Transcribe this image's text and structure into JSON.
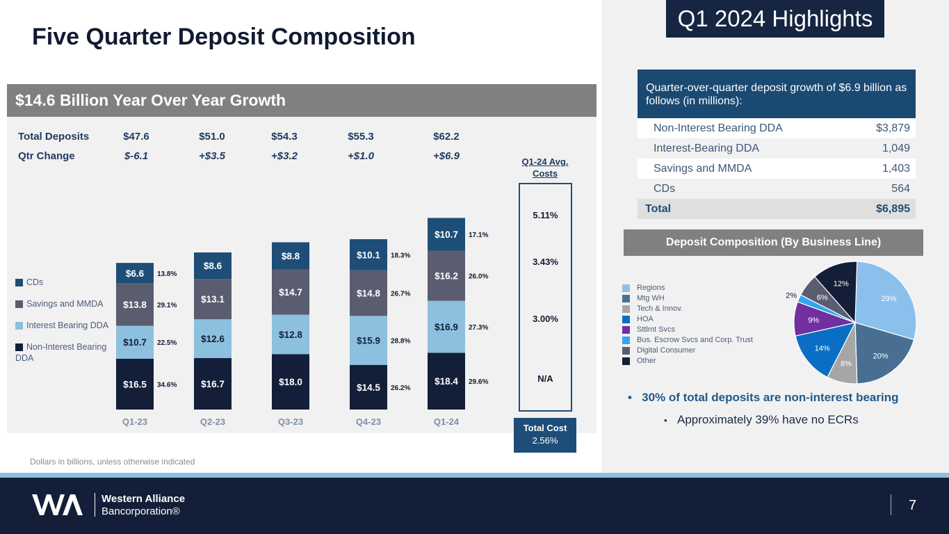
{
  "title": "Five Quarter Deposit Composition",
  "highlights_label": "Q1 2024 Highlights",
  "banner": "$14.6 Billion Year Over Year Growth",
  "header_rows": {
    "total_label": "Total Deposits",
    "change_label": "Qtr Change",
    "totals": [
      "$47.6",
      "$51.0",
      "$54.3",
      "$55.3",
      "$62.2"
    ],
    "changes": [
      "$-6.1",
      "+$3.5",
      "+$3.2",
      "+$1.0",
      "+$6.9"
    ]
  },
  "chart_data": [
    {
      "type": "bar",
      "stacked": true,
      "categories": [
        "Q1-23",
        "Q2-23",
        "Q3-23",
        "Q4-23",
        "Q1-24"
      ],
      "series": [
        {
          "name": "Non-Interest Bearing DDA",
          "color": "#131f38",
          "values": [
            16.5,
            16.7,
            18.0,
            14.5,
            18.4
          ],
          "labels": [
            "$16.5",
            "$16.7",
            "$18.0",
            "$14.5",
            "$18.4"
          ],
          "pcts": [
            "34.6%",
            "",
            "",
            "26.2%",
            "29.6%"
          ]
        },
        {
          "name": "Interest Bearing DDA",
          "color": "#8cc0de",
          "values": [
            10.7,
            12.6,
            12.8,
            15.9,
            16.9
          ],
          "labels": [
            "$10.7",
            "$12.6",
            "$12.8",
            "$15.9",
            "$16.9"
          ],
          "pcts": [
            "22.5%",
            "",
            "",
            "28.8%",
            "27.3%"
          ]
        },
        {
          "name": "Savings and MMDA",
          "color": "#5a5d6f",
          "values": [
            13.8,
            13.1,
            14.7,
            14.8,
            16.2
          ],
          "labels": [
            "$13.8",
            "$13.1",
            "$14.7",
            "$14.8",
            "$16.2"
          ],
          "pcts": [
            "29.1%",
            "",
            "",
            "26.7%",
            "26.0%"
          ]
        },
        {
          "name": "CDs",
          "color": "#1e4d78",
          "values": [
            6.6,
            8.6,
            8.8,
            10.1,
            10.7
          ],
          "labels": [
            "$6.6",
            "$8.6",
            "$8.8",
            "$10.1",
            "$10.7"
          ],
          "pcts": [
            "13.8%",
            "",
            "",
            "18.3%",
            "17.1%"
          ]
        }
      ],
      "legend_order": [
        "CDs",
        "Savings and MMDA",
        "Interest Bearing DDA",
        "Non-Interest Bearing DDA"
      ],
      "units": "Dollars in billions"
    },
    {
      "type": "pie",
      "title": "Deposit Composition (By Business Line)",
      "slices": [
        {
          "name": "Regions",
          "value": 29,
          "label": "29%",
          "color": "#8cc0ec"
        },
        {
          "name": "Mtg WH",
          "value": 20,
          "label": "20%",
          "color": "#486f92"
        },
        {
          "name": "Tech & Innov.",
          "value": 8,
          "label": "8%",
          "color": "#a6a6a6"
        },
        {
          "name": "HOA",
          "value": 14,
          "label": "14%",
          "color": "#0a6fc4"
        },
        {
          "name": "Sttlmt Svcs",
          "value": 9,
          "label": "9%",
          "color": "#7030a0"
        },
        {
          "name": "Bus. Escrow Svcs and Corp. Trust",
          "value": 2,
          "label": "2%",
          "color": "#33a6f0"
        },
        {
          "name": "Digital Consumer",
          "value": 6,
          "label": "6%",
          "color": "#5a5d6f"
        },
        {
          "name": "Other",
          "value": 12,
          "label": "12%",
          "color": "#131f38"
        }
      ]
    }
  ],
  "avg_costs": {
    "title": "Q1-24 Avg. Costs",
    "values": [
      "5.11%",
      "3.43%",
      "3.00%",
      "N/A"
    ],
    "total_label": "Total Cost",
    "total_value": "2.56%"
  },
  "growth": {
    "header": "Quarter-over-quarter deposit growth of $6.9 billion as follows (in millions):",
    "rows": [
      {
        "label": "Non-Interest Bearing DDA",
        "value": "$3,879"
      },
      {
        "label": "Interest-Bearing DDA",
        "value": "1,049"
      },
      {
        "label": "Savings and MMDA",
        "value": "1,403"
      },
      {
        "label": "CDs",
        "value": "564"
      }
    ],
    "total_label": "Total",
    "total_value": "$6,895"
  },
  "bullets": [
    "30% of total deposits are non-interest bearing",
    "Approximately 39% have no ECRs"
  ],
  "footnote": "Dollars in billions, unless otherwise indicated",
  "company": {
    "line1": "Western Alliance",
    "line2": "Bancorporation®"
  },
  "page_number": "7",
  "colors": {
    "navy": "#131f38",
    "accent_blue": "#1e4d78",
    "light_blue": "#8cc0de",
    "gray": "#808080"
  }
}
